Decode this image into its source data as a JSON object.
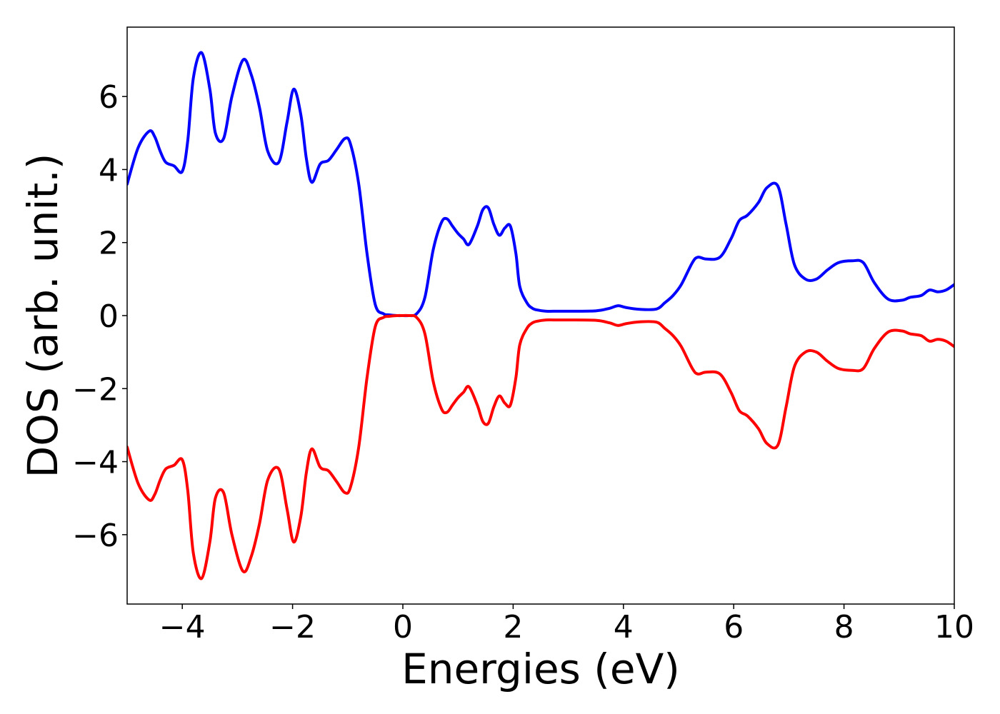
{
  "chart_data": {
    "type": "line",
    "title": "",
    "xlabel": "Energies (eV)",
    "ylabel": "DOS (arb. unit.)",
    "xlim": [
      -5,
      10
    ],
    "ylim": [
      -7.9,
      7.9
    ],
    "xticks": [
      -4,
      -2,
      0,
      2,
      4,
      6,
      8,
      10
    ],
    "yticks": [
      -6,
      -4,
      -2,
      0,
      2,
      4,
      6
    ],
    "xtick_labels": [
      "−4",
      "−2",
      "0",
      "2",
      "4",
      "6",
      "8",
      "10"
    ],
    "ytick_labels": [
      "−6",
      "−4",
      "−2",
      "0",
      "2",
      "4",
      "6"
    ],
    "grid": false,
    "legend": "none",
    "series": [
      {
        "color": "#0000ff",
        "x": [
          -5.0,
          -4.8,
          -4.6,
          -4.5,
          -4.4,
          -4.3,
          -4.15,
          -4.0,
          -3.9,
          -3.8,
          -3.65,
          -3.5,
          -3.4,
          -3.25,
          -3.1,
          -2.9,
          -2.75,
          -2.6,
          -2.45,
          -2.25,
          -2.1,
          -1.98,
          -1.85,
          -1.75,
          -1.65,
          -1.5,
          -1.35,
          -1.2,
          -1.05,
          -0.95,
          -0.8,
          -0.65,
          -0.5,
          -0.35,
          -0.25,
          -0.1,
          0.0,
          0.1,
          0.25,
          0.4,
          0.55,
          0.7,
          0.8,
          0.9,
          1.0,
          1.1,
          1.2,
          1.35,
          1.45,
          1.55,
          1.65,
          1.75,
          1.85,
          1.95,
          2.05,
          2.12,
          2.25,
          2.35,
          2.45,
          2.6,
          2.8,
          3.0,
          3.5,
          3.75,
          3.9,
          4.05,
          4.3,
          4.6,
          4.75,
          4.9,
          5.05,
          5.25,
          5.35,
          5.5,
          5.75,
          5.95,
          6.1,
          6.25,
          6.45,
          6.6,
          6.8,
          6.95,
          7.1,
          7.3,
          7.5,
          7.7,
          7.9,
          8.15,
          8.35,
          8.55,
          8.8,
          9.05,
          9.2,
          9.4,
          9.55,
          9.7,
          9.85,
          10.0
        ],
        "y": [
          3.6,
          4.6,
          5.05,
          4.9,
          4.5,
          4.2,
          4.1,
          3.95,
          4.8,
          6.5,
          7.2,
          6.2,
          5.0,
          4.85,
          6.0,
          7.0,
          6.6,
          5.7,
          4.5,
          4.2,
          5.3,
          6.2,
          5.5,
          4.3,
          3.65,
          4.15,
          4.25,
          4.55,
          4.85,
          4.7,
          3.6,
          1.7,
          0.3,
          0.05,
          0.02,
          0.0,
          0.0,
          0.0,
          0.05,
          0.5,
          1.8,
          2.55,
          2.65,
          2.45,
          2.25,
          2.1,
          1.95,
          2.45,
          2.9,
          2.95,
          2.5,
          2.2,
          2.4,
          2.45,
          1.7,
          0.8,
          0.35,
          0.2,
          0.15,
          0.12,
          0.12,
          0.12,
          0.13,
          0.2,
          0.27,
          0.22,
          0.17,
          0.18,
          0.35,
          0.55,
          0.85,
          1.45,
          1.6,
          1.55,
          1.6,
          2.1,
          2.6,
          2.75,
          3.1,
          3.5,
          3.55,
          2.5,
          1.4,
          1.0,
          1.0,
          1.25,
          1.45,
          1.5,
          1.45,
          0.9,
          0.45,
          0.42,
          0.5,
          0.55,
          0.7,
          0.65,
          0.7,
          0.85
        ]
      },
      {
        "color": "#ff0000",
        "x": [
          -5.0,
          -4.8,
          -4.6,
          -4.5,
          -4.4,
          -4.3,
          -4.15,
          -4.0,
          -3.9,
          -3.8,
          -3.65,
          -3.5,
          -3.4,
          -3.25,
          -3.1,
          -2.9,
          -2.75,
          -2.6,
          -2.45,
          -2.25,
          -2.1,
          -1.98,
          -1.85,
          -1.75,
          -1.65,
          -1.5,
          -1.35,
          -1.2,
          -1.05,
          -0.95,
          -0.8,
          -0.65,
          -0.5,
          -0.35,
          -0.25,
          -0.1,
          0.0,
          0.1,
          0.25,
          0.4,
          0.55,
          0.7,
          0.8,
          0.9,
          1.0,
          1.1,
          1.2,
          1.35,
          1.45,
          1.55,
          1.65,
          1.75,
          1.85,
          1.95,
          2.05,
          2.12,
          2.25,
          2.35,
          2.45,
          2.6,
          2.8,
          3.0,
          3.5,
          3.75,
          3.9,
          4.05,
          4.3,
          4.6,
          4.75,
          4.9,
          5.05,
          5.25,
          5.35,
          5.5,
          5.75,
          5.95,
          6.1,
          6.25,
          6.45,
          6.6,
          6.8,
          6.95,
          7.1,
          7.3,
          7.5,
          7.7,
          7.9,
          8.15,
          8.35,
          8.55,
          8.8,
          9.05,
          9.2,
          9.4,
          9.55,
          9.7,
          9.85,
          10.0
        ],
        "y": [
          -3.6,
          -4.6,
          -5.05,
          -4.9,
          -4.5,
          -4.2,
          -4.1,
          -3.95,
          -4.8,
          -6.5,
          -7.2,
          -6.2,
          -5.0,
          -4.85,
          -6.0,
          -7.0,
          -6.6,
          -5.7,
          -4.5,
          -4.2,
          -5.3,
          -6.2,
          -5.5,
          -4.3,
          -3.65,
          -4.15,
          -4.25,
          -4.55,
          -4.85,
          -4.7,
          -3.6,
          -1.7,
          -0.3,
          -0.05,
          -0.02,
          0.0,
          0.0,
          0.0,
          -0.05,
          -0.5,
          -1.8,
          -2.55,
          -2.65,
          -2.45,
          -2.25,
          -2.1,
          -1.95,
          -2.45,
          -2.9,
          -2.95,
          -2.5,
          -2.2,
          -2.4,
          -2.45,
          -1.7,
          -0.8,
          -0.35,
          -0.2,
          -0.15,
          -0.12,
          -0.12,
          -0.12,
          -0.13,
          -0.2,
          -0.27,
          -0.22,
          -0.17,
          -0.18,
          -0.35,
          -0.55,
          -0.85,
          -1.45,
          -1.6,
          -1.55,
          -1.6,
          -2.1,
          -2.6,
          -2.75,
          -3.1,
          -3.5,
          -3.55,
          -2.5,
          -1.4,
          -1.0,
          -1.0,
          -1.25,
          -1.45,
          -1.5,
          -1.45,
          -0.9,
          -0.45,
          -0.42,
          -0.5,
          -0.55,
          -0.7,
          -0.65,
          -0.7,
          -0.85
        ]
      }
    ]
  }
}
